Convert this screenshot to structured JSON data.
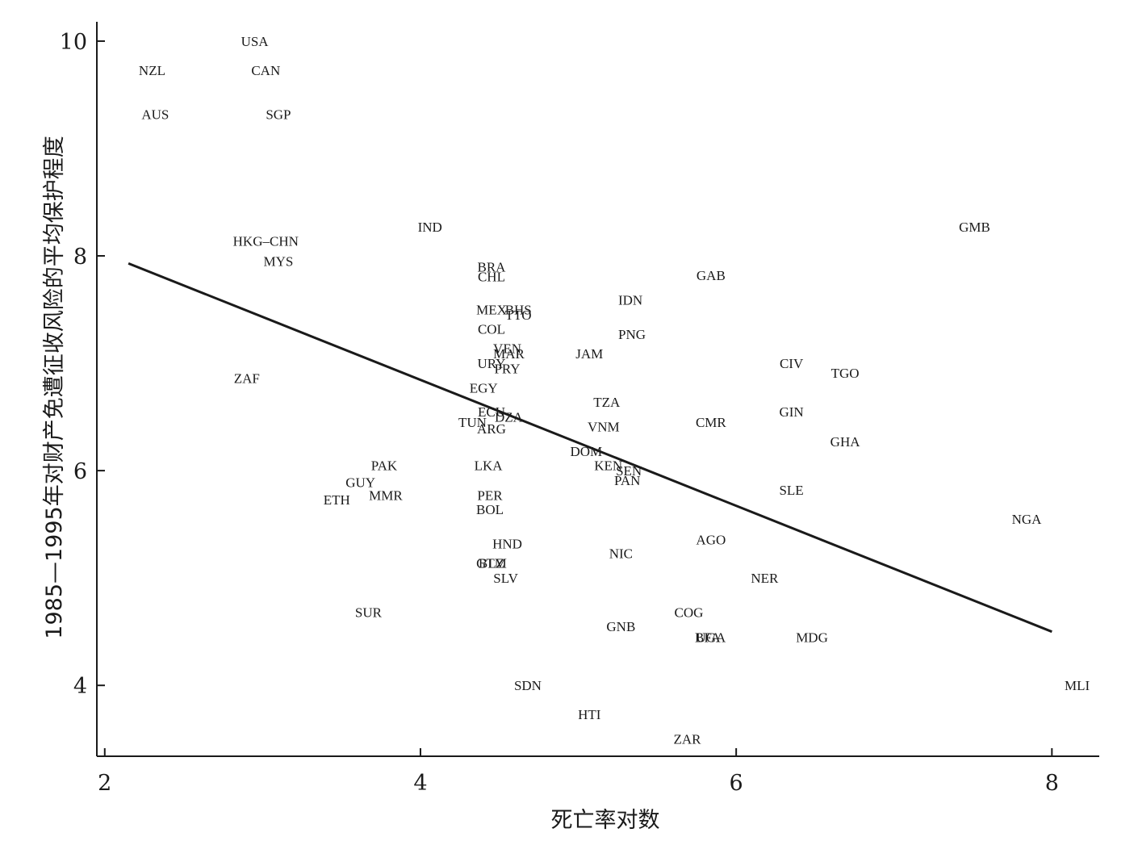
{
  "chart_data": {
    "type": "scatter",
    "xlabel": "死亡率对数",
    "ylabel": "1985—1995年对财产免遭征收风险的平均保护程度",
    "xlim": [
      1.95,
      8.3
    ],
    "ylim": [
      3.34,
      10.18
    ],
    "x_ticks": [
      2,
      4,
      6,
      8
    ],
    "y_ticks": [
      4,
      6,
      8,
      10
    ],
    "grid": false,
    "legend": "none",
    "fit_line": {
      "x": [
        2.15,
        8.0
      ],
      "y": [
        7.93,
        4.5
      ]
    },
    "points": [
      {
        "label": "USA",
        "x": 2.95,
        "y": 10.0
      },
      {
        "label": "NZL",
        "x": 2.3,
        "y": 9.73
      },
      {
        "label": "CAN",
        "x": 3.02,
        "y": 9.73
      },
      {
        "label": "AUS",
        "x": 2.32,
        "y": 9.32
      },
      {
        "label": "SGP",
        "x": 3.1,
        "y": 9.32
      },
      {
        "label": "IND",
        "x": 4.06,
        "y": 8.27
      },
      {
        "label": "HKG–CHN",
        "x": 3.02,
        "y": 8.14
      },
      {
        "label": "MYS",
        "x": 3.1,
        "y": 7.95
      },
      {
        "label": "GMB",
        "x": 7.51,
        "y": 8.27
      },
      {
        "label": "BRA",
        "x": 4.45,
        "y": 7.9
      },
      {
        "label": "CHL",
        "x": 4.45,
        "y": 7.81
      },
      {
        "label": "GAB",
        "x": 5.84,
        "y": 7.82
      },
      {
        "label": "IDN",
        "x": 5.33,
        "y": 7.59
      },
      {
        "label": "MEX",
        "x": 4.45,
        "y": 7.5
      },
      {
        "label": "BHS",
        "x": 4.62,
        "y": 7.5
      },
      {
        "label": "TTO",
        "x": 4.62,
        "y": 7.45
      },
      {
        "label": "COL",
        "x": 4.45,
        "y": 7.32
      },
      {
        "label": "PNG",
        "x": 5.34,
        "y": 7.27
      },
      {
        "label": "VEN",
        "x": 4.55,
        "y": 7.14
      },
      {
        "label": "JAM",
        "x": 5.07,
        "y": 7.09
      },
      {
        "label": "MAR",
        "x": 4.56,
        "y": 7.09
      },
      {
        "label": "URY",
        "x": 4.45,
        "y": 7.0
      },
      {
        "label": "PRY",
        "x": 4.55,
        "y": 6.95
      },
      {
        "label": "CIV",
        "x": 6.35,
        "y": 7.0
      },
      {
        "label": "TGO",
        "x": 6.69,
        "y": 6.91
      },
      {
        "label": "ZAF",
        "x": 2.9,
        "y": 6.86
      },
      {
        "label": "EGY",
        "x": 4.4,
        "y": 6.77
      },
      {
        "label": "TZA",
        "x": 5.18,
        "y": 6.64
      },
      {
        "label": "GIN",
        "x": 6.35,
        "y": 6.55
      },
      {
        "label": "ECU",
        "x": 4.45,
        "y": 6.55
      },
      {
        "label": "DZA",
        "x": 4.56,
        "y": 6.5
      },
      {
        "label": "TUN",
        "x": 4.33,
        "y": 6.45
      },
      {
        "label": "CMR",
        "x": 5.84,
        "y": 6.45
      },
      {
        "label": "ARG",
        "x": 4.45,
        "y": 6.39
      },
      {
        "label": "VNM",
        "x": 5.16,
        "y": 6.41
      },
      {
        "label": "GHA",
        "x": 6.69,
        "y": 6.27
      },
      {
        "label": "DOM",
        "x": 5.05,
        "y": 6.18
      },
      {
        "label": "PAK",
        "x": 3.77,
        "y": 6.05
      },
      {
        "label": "LKA",
        "x": 4.43,
        "y": 6.05
      },
      {
        "label": "KEN",
        "x": 5.19,
        "y": 6.05
      },
      {
        "label": "SEN",
        "x": 5.32,
        "y": 6.0
      },
      {
        "label": "PAN",
        "x": 5.31,
        "y": 5.91
      },
      {
        "label": "GUY",
        "x": 3.62,
        "y": 5.89
      },
      {
        "label": "ETH",
        "x": 3.47,
        "y": 5.73
      },
      {
        "label": "MMR",
        "x": 3.78,
        "y": 5.77
      },
      {
        "label": "PER",
        "x": 4.44,
        "y": 5.77
      },
      {
        "label": "SLE",
        "x": 6.35,
        "y": 5.82
      },
      {
        "label": "BOL",
        "x": 4.44,
        "y": 5.64
      },
      {
        "label": "NGA",
        "x": 7.84,
        "y": 5.55
      },
      {
        "label": "AGO",
        "x": 5.84,
        "y": 5.36
      },
      {
        "label": "HND",
        "x": 4.55,
        "y": 5.32
      },
      {
        "label": "NIC",
        "x": 5.27,
        "y": 5.23
      },
      {
        "label": "GTM",
        "x": 4.45,
        "y": 5.14
      },
      {
        "label": "BLZ",
        "x": 4.45,
        "y": 5.14
      },
      {
        "label": "SLV",
        "x": 4.54,
        "y": 5.0
      },
      {
        "label": "NER",
        "x": 6.18,
        "y": 5.0
      },
      {
        "label": "SUR",
        "x": 3.67,
        "y": 4.68
      },
      {
        "label": "COG",
        "x": 5.7,
        "y": 4.68
      },
      {
        "label": "GNB",
        "x": 5.27,
        "y": 4.55
      },
      {
        "label": "BFA",
        "x": 5.82,
        "y": 4.45
      },
      {
        "label": "UGA",
        "x": 5.84,
        "y": 4.45
      },
      {
        "label": "MDG",
        "x": 6.48,
        "y": 4.45
      },
      {
        "label": "SDN",
        "x": 4.68,
        "y": 4.0
      },
      {
        "label": "MLI",
        "x": 8.16,
        "y": 4.0
      },
      {
        "label": "HTI",
        "x": 5.07,
        "y": 3.73
      },
      {
        "label": "ZAR",
        "x": 5.69,
        "y": 3.5
      }
    ]
  }
}
